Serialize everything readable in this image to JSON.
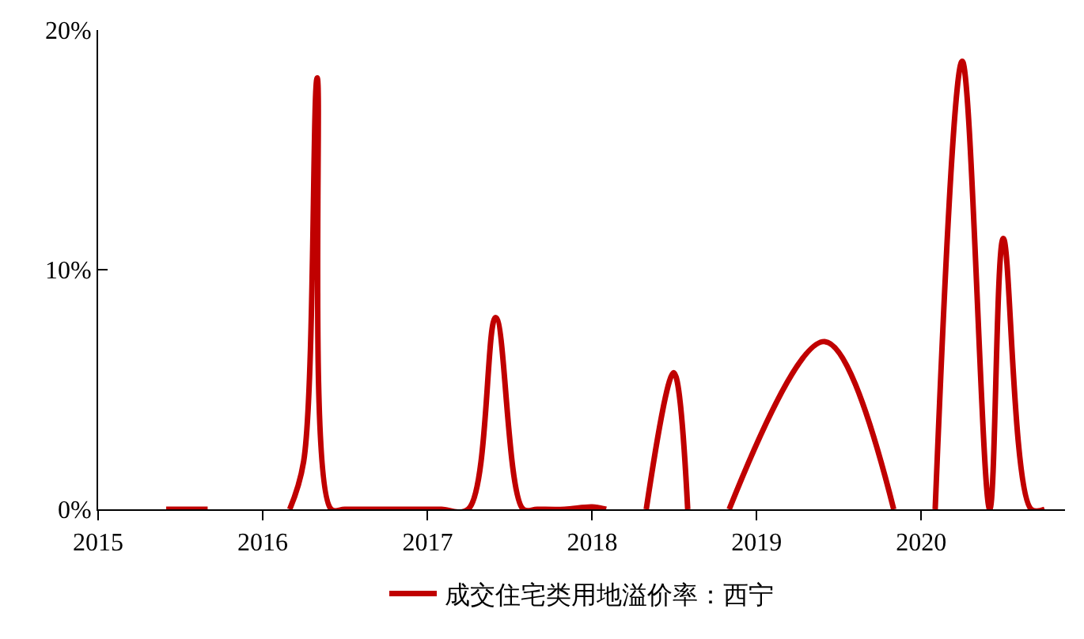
{
  "chart_data": {
    "type": "line",
    "x": [
      "2015-06",
      "2015-07",
      "2015-08",
      "2015-09",
      "2015-12",
      "2016-03",
      "2016-04",
      "2016-05",
      "2016-06",
      "2016-07",
      "2016-09",
      "2016-11",
      "2017-01",
      "2017-02",
      "2017-04",
      "2017-06",
      "2017-08",
      "2017-09",
      "2017-11",
      "2018-01",
      "2018-02",
      "2018-03",
      "2018-05",
      "2018-07",
      "2018-08",
      "2018-09",
      "2018-11",
      "2019-06",
      "2019-11",
      "2019-12",
      "2020-02",
      "2020-04",
      "2020-06",
      "2020-07",
      "2020-09",
      "2020-10"
    ],
    "series": [
      {
        "name": "成交住宅类用地溢价率：西宁",
        "color": "#c00000",
        "values": [
          0,
          0,
          0,
          0,
          null,
          0,
          2,
          18,
          0,
          0,
          0,
          0,
          0,
          0,
          0,
          8,
          0,
          0,
          0,
          0.1,
          0,
          null,
          0,
          5.7,
          0,
          null,
          0,
          7,
          0,
          null,
          0,
          18.7,
          0,
          11.3,
          0,
          0
        ]
      }
    ],
    "xlim": [
      "2015-01-01",
      "2020-11-15"
    ],
    "xticks": [
      "2015",
      "2016",
      "2017",
      "2018",
      "2019",
      "2020"
    ],
    "ylim": [
      0,
      20
    ],
    "yticks": [
      {
        "value": 0,
        "label": "0%"
      },
      {
        "value": 10,
        "label": "10%"
      },
      {
        "value": 20,
        "label": "20%"
      }
    ],
    "legend": "bottom",
    "marker": "none",
    "line_style": "solid"
  }
}
